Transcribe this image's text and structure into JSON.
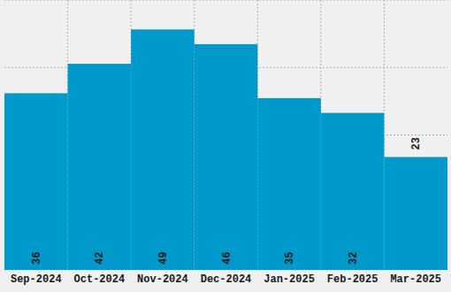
{
  "chart_data": {
    "type": "bar",
    "categories": [
      "Sep-2024",
      "Oct-2024",
      "Nov-2024",
      "Dec-2024",
      "Jan-2025",
      "Feb-2025",
      "Mar-2025"
    ],
    "values": [
      36,
      42,
      49,
      46,
      35,
      32,
      23
    ],
    "color": "#0099cc",
    "ylim": [
      0,
      55
    ],
    "yticks": [
      0,
      13.75,
      27.5,
      41.25,
      55
    ],
    "grid": true,
    "data_labels": true,
    "tick_labels": "x"
  }
}
